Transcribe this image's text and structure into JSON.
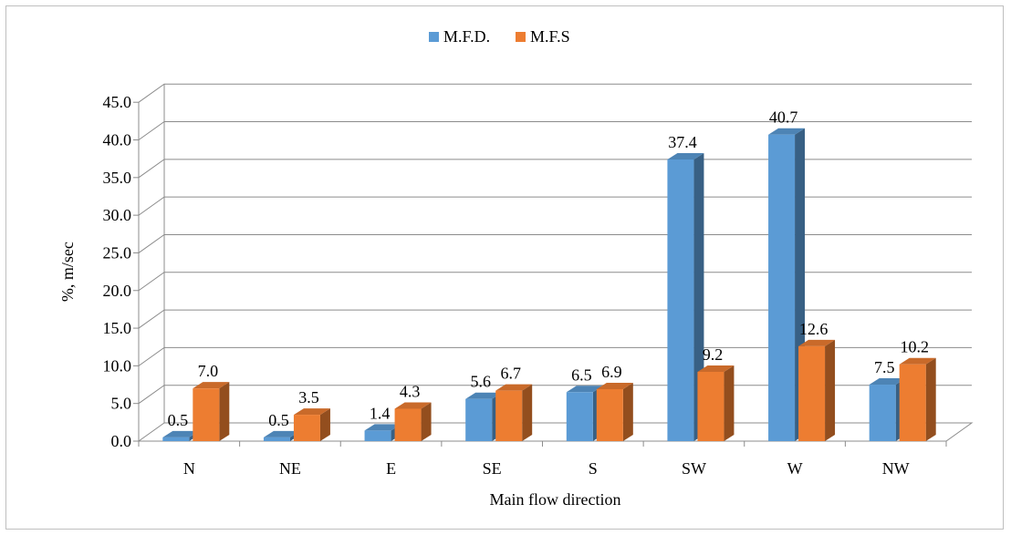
{
  "chart_data": {
    "type": "bar",
    "categories": [
      "N",
      "NE",
      "E",
      "SE",
      "S",
      "SW",
      "W",
      "NW"
    ],
    "series": [
      {
        "name": "M.F.D.",
        "values": [
          0.5,
          0.5,
          1.4,
          5.6,
          6.5,
          37.4,
          40.7,
          7.5
        ],
        "color": "#5b9bd5"
      },
      {
        "name": "M.F.S",
        "values": [
          7.0,
          3.5,
          4.3,
          6.7,
          6.9,
          9.2,
          12.6,
          10.2
        ],
        "color": "#ed7d31"
      }
    ],
    "value_labels": [
      [
        "0.5",
        "0.5",
        "1.4",
        "5.6",
        "6.5",
        "37.4",
        "40.7",
        "7.5"
      ],
      [
        "7.0",
        "3.5",
        "4.3",
        "6.7",
        "6.9",
        "9.2",
        "12.6",
        "10.2"
      ]
    ],
    "y_ticks": [
      "0.0",
      "5.0",
      "10.0",
      "15.0",
      "20.0",
      "25.0",
      "30.0",
      "35.0",
      "40.0",
      "45.0"
    ],
    "xlabel": "Main flow direction",
    "ylabel": "%, m/sec",
    "ylim": [
      0,
      45
    ],
    "grid": true,
    "legend_position": "top-center",
    "style": "3d-clustered-column"
  }
}
